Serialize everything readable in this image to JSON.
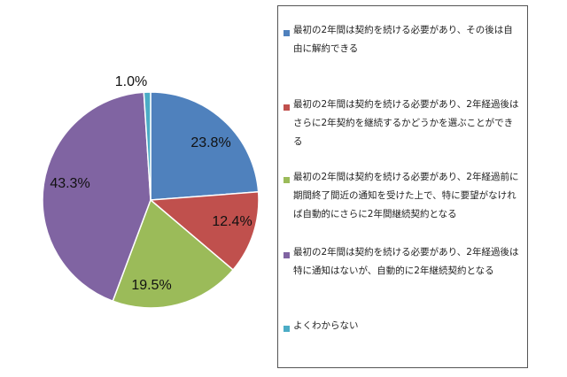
{
  "chart_data": {
    "type": "pie",
    "title": "",
    "legend_position": "right",
    "slices": [
      {
        "label": "最初の2年間は契約を続ける必要があり、その後は自由に解約できる",
        "value": 23.8,
        "display": "23.8%",
        "color": "#4f81bd"
      },
      {
        "label": "最初の2年間は契約を続ける必要があり、2年経過後はさらに2年契約を継続するかどうかを選ぶことができる",
        "value": 12.4,
        "display": "12.4%",
        "color": "#c0504d"
      },
      {
        "label": "最初の2年間は契約を続ける必要があり、2年経過前に期間終了間近の通知を受けた上で、特に要望がなければ自動的にさらに2年間継続契約となる",
        "value": 19.5,
        "display": "19.5%",
        "color": "#9bbb59"
      },
      {
        "label": "最初の2年間は契約を続ける必要があり、2年経過後は特に通知はないが、自動的に2年継続契約となる",
        "value": 43.3,
        "display": "43.3%",
        "color": "#8064a2"
      },
      {
        "label": "よくわからない",
        "value": 1.0,
        "display": "1.0%",
        "color": "#4bacc6"
      }
    ]
  }
}
